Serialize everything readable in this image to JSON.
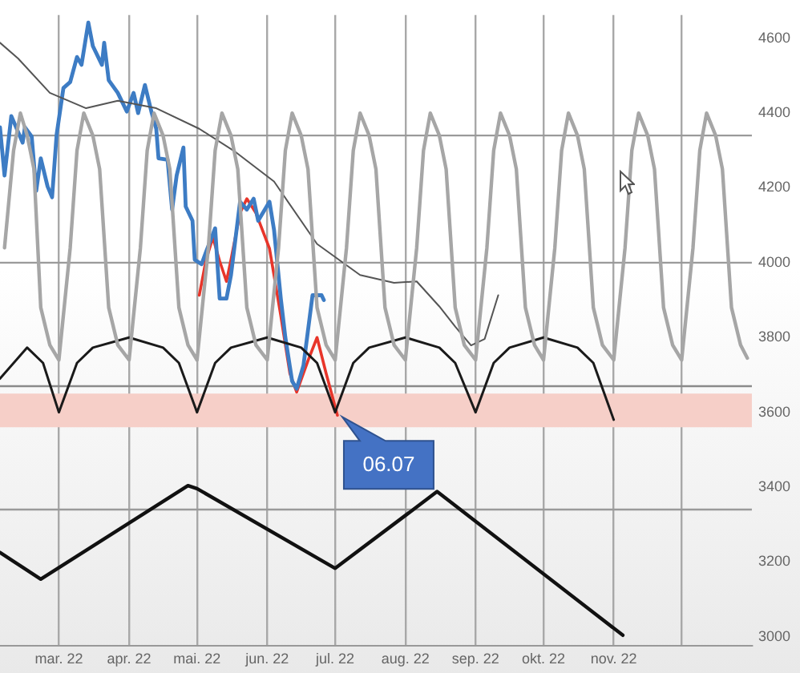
{
  "chart_data": {
    "type": "line",
    "marker": "none",
    "grid": "x",
    "xlim": [
      "2022-02-03",
      "2023-01-01"
    ],
    "ylim": [
      2975,
      4662
    ],
    "xticks": [
      {
        "value": "2022-03",
        "label": "mar. 22"
      },
      {
        "value": "2022-04",
        "label": "apr. 22"
      },
      {
        "value": "2022-05",
        "label": "mai. 22"
      },
      {
        "value": "2022-06",
        "label": "jun. 22"
      },
      {
        "value": "2022-07",
        "label": "jul. 22"
      },
      {
        "value": "2022-08",
        "label": "aug. 22"
      },
      {
        "value": "2022-09",
        "label": "sep. 22"
      },
      {
        "value": "2022-10",
        "label": "okt. 22"
      },
      {
        "value": "2022-11",
        "label": "nov. 22"
      },
      {
        "value": "2022-12",
        "label": null
      }
    ],
    "yticks": [
      3000,
      3200,
      3400,
      3600,
      3800,
      4000,
      4200,
      4400,
      4600
    ],
    "ref_lines": [
      {
        "axis": "y",
        "value": 4340,
        "color": "#9a9a9a"
      },
      {
        "axis": "y",
        "value": 4000,
        "color": "#9a9a9a"
      },
      {
        "axis": "y",
        "value": 3670,
        "color": "#8a8a8a"
      },
      {
        "axis": "y",
        "value": 3340,
        "color": "#9a9a9a"
      }
    ],
    "bands": [
      {
        "axis": "y",
        "from": 3560,
        "to": 3650,
        "color": "#f6cfc8"
      }
    ],
    "annotations": [
      {
        "text": "06.07",
        "x": "2022-07-02",
        "y": 3592
      }
    ],
    "series": [
      {
        "color": "#a6a6a6",
        "x": [
          "2022-02-05",
          "2022-02-09",
          "2022-02-12",
          "2022-02-15",
          "2022-02-18",
          "2022-02-21",
          "2022-02-25",
          "2022-03-01",
          "2022-03-06",
          "2022-03-09",
          "2022-03-12",
          "2022-03-16",
          "2022-03-19",
          "2022-03-23",
          "2022-03-27",
          "2022-04-01",
          "2022-04-06",
          "2022-04-09",
          "2022-04-12",
          "2022-04-16",
          "2022-04-19",
          "2022-04-23",
          "2022-04-27",
          "2022-05-01",
          "2022-05-06",
          "2022-05-09",
          "2022-05-12",
          "2022-05-16",
          "2022-05-19",
          "2022-05-23",
          "2022-05-27",
          "2022-06-01",
          "2022-06-06",
          "2022-06-09",
          "2022-06-12",
          "2022-06-16",
          "2022-06-19",
          "2022-06-23",
          "2022-06-27",
          "2022-07-01",
          "2022-07-06",
          "2022-07-09",
          "2022-07-12",
          "2022-07-16",
          "2022-07-19",
          "2022-07-23",
          "2022-07-27",
          "2022-08-01",
          "2022-08-06",
          "2022-08-09",
          "2022-08-12",
          "2022-08-16",
          "2022-08-19",
          "2022-08-23",
          "2022-08-27",
          "2022-09-01",
          "2022-09-06",
          "2022-09-09",
          "2022-09-12",
          "2022-09-16",
          "2022-09-19",
          "2022-09-23",
          "2022-09-27",
          "2022-10-01",
          "2022-10-06",
          "2022-10-09",
          "2022-10-12",
          "2022-10-16",
          "2022-10-19",
          "2022-10-23",
          "2022-10-27",
          "2022-11-01",
          "2022-11-06",
          "2022-11-09",
          "2022-11-12",
          "2022-11-16",
          "2022-11-19",
          "2022-11-23",
          "2022-11-27",
          "2022-12-01",
          "2022-12-06",
          "2022-12-09",
          "2022-12-12",
          "2022-12-16",
          "2022-12-19",
          "2022-12-23",
          "2022-12-27",
          "2022-12-30"
        ],
        "values": [
          4040,
          4300,
          4400,
          4340,
          4250,
          3880,
          3780,
          3740,
          4040,
          4300,
          4400,
          4340,
          4250,
          3880,
          3780,
          3740,
          4040,
          4300,
          4400,
          4340,
          4250,
          3880,
          3780,
          3740,
          4040,
          4300,
          4400,
          4340,
          4250,
          3880,
          3780,
          3740,
          4040,
          4300,
          4400,
          4340,
          4250,
          3880,
          3780,
          3740,
          4040,
          4300,
          4400,
          4340,
          4250,
          3880,
          3780,
          3740,
          4040,
          4300,
          4400,
          4340,
          4250,
          3880,
          3780,
          3740,
          4040,
          4300,
          4400,
          4340,
          4250,
          3880,
          3780,
          3740,
          4040,
          4300,
          4400,
          4340,
          4250,
          3880,
          3780,
          3740,
          4040,
          4300,
          4400,
          4340,
          4250,
          3880,
          3780,
          3740,
          4040,
          4300,
          4400,
          4340,
          4250,
          3880,
          3780,
          3745
        ]
      },
      {
        "color": "#1a1a1a",
        "x": [
          "2022-02-03",
          "2022-02-15",
          "2022-02-22",
          "2022-03-01",
          "2022-03-09",
          "2022-03-16",
          "2022-04-01",
          "2022-04-16",
          "2022-04-23",
          "2022-05-01",
          "2022-05-09",
          "2022-05-16",
          "2022-06-01",
          "2022-06-16",
          "2022-06-23",
          "2022-07-01",
          "2022-07-09",
          "2022-07-16",
          "2022-08-01",
          "2022-08-16",
          "2022-08-23",
          "2022-09-01",
          "2022-09-09",
          "2022-09-16",
          "2022-10-01",
          "2022-10-16",
          "2022-10-23",
          "2022-11-01"
        ],
        "values": [
          3690,
          3773,
          3732,
          3600,
          3732,
          3773,
          3800,
          3773,
          3732,
          3600,
          3732,
          3773,
          3800,
          3773,
          3732,
          3600,
          3732,
          3773,
          3800,
          3773,
          3732,
          3600,
          3732,
          3773,
          3800,
          3773,
          3732,
          3580
        ]
      },
      {
        "color": "#555555",
        "x": [
          "2022-02-03",
          "2022-02-11",
          "2022-02-25",
          "2022-03-13",
          "2022-03-27",
          "2022-04-13",
          "2022-05-02",
          "2022-05-18",
          "2022-06-04",
          "2022-06-23",
          "2022-07-12",
          "2022-07-27",
          "2022-08-06",
          "2022-08-16",
          "2022-08-23",
          "2022-08-30",
          "2022-09-05",
          "2022-09-11"
        ],
        "values": [
          4588,
          4546,
          4454,
          4413,
          4433,
          4413,
          4358,
          4296,
          4217,
          4050,
          3967,
          3946,
          3950,
          3883,
          3829,
          3779,
          3796,
          3913
        ]
      },
      {
        "color": "#3d7cc4",
        "x": [
          "2022-02-03",
          "2022-02-05",
          "2022-02-08",
          "2022-02-13",
          "2022-02-14",
          "2022-02-17",
          "2022-02-19",
          "2022-02-21",
          "2022-02-24",
          "2022-02-26",
          "2022-02-28",
          "2022-03-03",
          "2022-03-06",
          "2022-03-09",
          "2022-03-11",
          "2022-03-14",
          "2022-03-16",
          "2022-03-20",
          "2022-03-21",
          "2022-03-23",
          "2022-03-27",
          "2022-03-31",
          "2022-04-03",
          "2022-04-05",
          "2022-04-08",
          "2022-04-11",
          "2022-04-13",
          "2022-04-14",
          "2022-04-18",
          "2022-04-20",
          "2022-04-22",
          "2022-04-25",
          "2022-04-26",
          "2022-04-29",
          "2022-04-30",
          "2022-05-03",
          "2022-05-05",
          "2022-05-09",
          "2022-05-11",
          "2022-05-14",
          "2022-05-16",
          "2022-05-20",
          "2022-05-23",
          "2022-05-26",
          "2022-05-28",
          "2022-06-02",
          "2022-06-04",
          "2022-06-07",
          "2022-06-09",
          "2022-06-12",
          "2022-06-14",
          "2022-06-17",
          "2022-06-21",
          "2022-06-25",
          "2022-06-26"
        ],
        "values": [
          4362,
          4233,
          4392,
          4321,
          4362,
          4337,
          4192,
          4279,
          4204,
          4175,
          4342,
          4467,
          4483,
          4550,
          4529,
          4642,
          4579,
          4529,
          4588,
          4488,
          4454,
          4404,
          4454,
          4400,
          4475,
          4400,
          4358,
          4279,
          4275,
          4142,
          4233,
          4308,
          4150,
          4112,
          4008,
          3996,
          4029,
          4092,
          3904,
          3904,
          3967,
          4163,
          4142,
          4171,
          4112,
          4163,
          4088,
          3904,
          3800,
          3683,
          3663,
          3725,
          3913,
          3913,
          3900
        ]
      },
      {
        "color": "#e8352a",
        "x": [
          "2022-05-02",
          "2022-05-05",
          "2022-05-08",
          "2022-05-11",
          "2022-05-14",
          "2022-05-16",
          "2022-05-20",
          "2022-05-23",
          "2022-05-27",
          "2022-06-02",
          "2022-06-07",
          "2022-06-11",
          "2022-06-14",
          "2022-06-19",
          "2022-06-23",
          "2022-06-27",
          "2022-07-02"
        ],
        "values": [
          3913,
          4008,
          4067,
          4004,
          3950,
          4008,
          4133,
          4171,
          4133,
          4038,
          3858,
          3704,
          3654,
          3738,
          3800,
          3704,
          3592
        ]
      },
      {
        "color": "#111111",
        "x": [
          "2022-02-03",
          "2022-02-21",
          "2022-04-27",
          "2022-05-01",
          "2022-07-01",
          "2022-08-15",
          "2022-11-05"
        ],
        "values": [
          3225,
          3154,
          3404,
          3396,
          3183,
          3388,
          3004
        ]
      }
    ]
  }
}
